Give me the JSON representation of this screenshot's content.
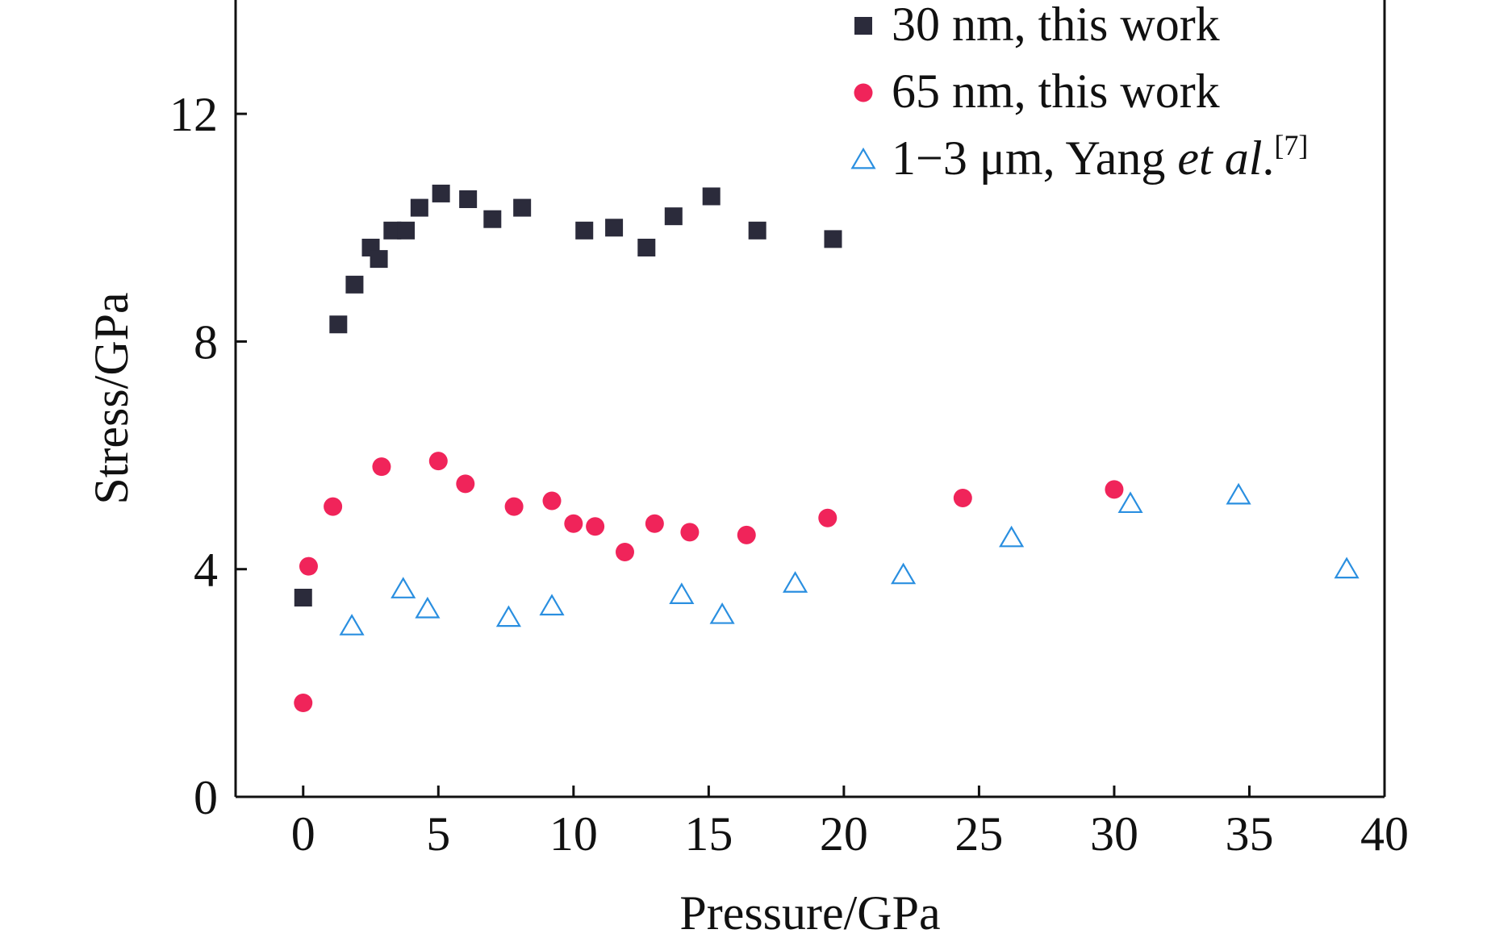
{
  "chart_data": {
    "type": "scatter",
    "title": "",
    "xlabel": "Pressure/GPa",
    "ylabel": "Stress/GPa",
    "xlim": [
      -2.5,
      40
    ],
    "ylim": [
      0,
      14
    ],
    "x_ticks": [
      0,
      5,
      10,
      15,
      20,
      25,
      30,
      35,
      40
    ],
    "y_ticks": [
      0,
      4,
      8,
      12
    ],
    "x_tick_labels": [
      "0",
      "5",
      "10",
      "15",
      "20",
      "25",
      "30",
      "35",
      "40"
    ],
    "y_tick_labels": [
      "0",
      "4",
      "8",
      "12"
    ],
    "grid": false,
    "legend_position": "top-right",
    "series": [
      {
        "name": "30 nm, this work",
        "legend_label": "30 nm, this work",
        "marker": "square",
        "color": "#2b2b3b",
        "points": [
          [
            0.0,
            3.5
          ],
          [
            1.3,
            8.3
          ],
          [
            1.9,
            9.0
          ],
          [
            2.5,
            9.65
          ],
          [
            2.8,
            9.45
          ],
          [
            3.3,
            9.95
          ],
          [
            3.8,
            9.95
          ],
          [
            4.3,
            10.35
          ],
          [
            5.1,
            10.6
          ],
          [
            6.1,
            10.5
          ],
          [
            7.0,
            10.15
          ],
          [
            8.1,
            10.35
          ],
          [
            10.4,
            9.95
          ],
          [
            11.5,
            10.0
          ],
          [
            12.7,
            9.65
          ],
          [
            13.7,
            10.2
          ],
          [
            15.1,
            10.55
          ],
          [
            16.8,
            9.95
          ],
          [
            19.6,
            9.8
          ]
        ]
      },
      {
        "name": "65 nm, this work",
        "legend_label": "65 nm, this work",
        "marker": "circle",
        "color": "#f0245a",
        "points": [
          [
            0.0,
            1.65
          ],
          [
            0.2,
            4.05
          ],
          [
            1.1,
            5.1
          ],
          [
            2.9,
            5.8
          ],
          [
            5.0,
            5.9
          ],
          [
            6.0,
            5.5
          ],
          [
            7.8,
            5.1
          ],
          [
            9.2,
            5.2
          ],
          [
            10.0,
            4.8
          ],
          [
            10.8,
            4.75
          ],
          [
            11.9,
            4.3
          ],
          [
            13.0,
            4.8
          ],
          [
            14.3,
            4.65
          ],
          [
            16.4,
            4.6
          ],
          [
            19.4,
            4.9
          ],
          [
            24.4,
            5.25
          ],
          [
            30.0,
            5.4
          ]
        ]
      },
      {
        "name": "1−3 μm, Yang et al.[7]",
        "legend_label_prefix": "1−3 μm, Yang ",
        "legend_label_italic": "et al",
        "legend_label_suffix": ".",
        "legend_label_ref": "[7]",
        "marker": "triangle-open",
        "color": "#2a8fe0",
        "points": [
          [
            1.8,
            3.0
          ],
          [
            3.7,
            3.65
          ],
          [
            4.6,
            3.3
          ],
          [
            7.6,
            3.15
          ],
          [
            9.2,
            3.35
          ],
          [
            14.0,
            3.55
          ],
          [
            15.5,
            3.2
          ],
          [
            18.2,
            3.75
          ],
          [
            22.2,
            3.9
          ],
          [
            26.2,
            4.55
          ],
          [
            30.6,
            5.15
          ],
          [
            34.6,
            5.3
          ],
          [
            38.6,
            4.0
          ]
        ]
      }
    ]
  }
}
